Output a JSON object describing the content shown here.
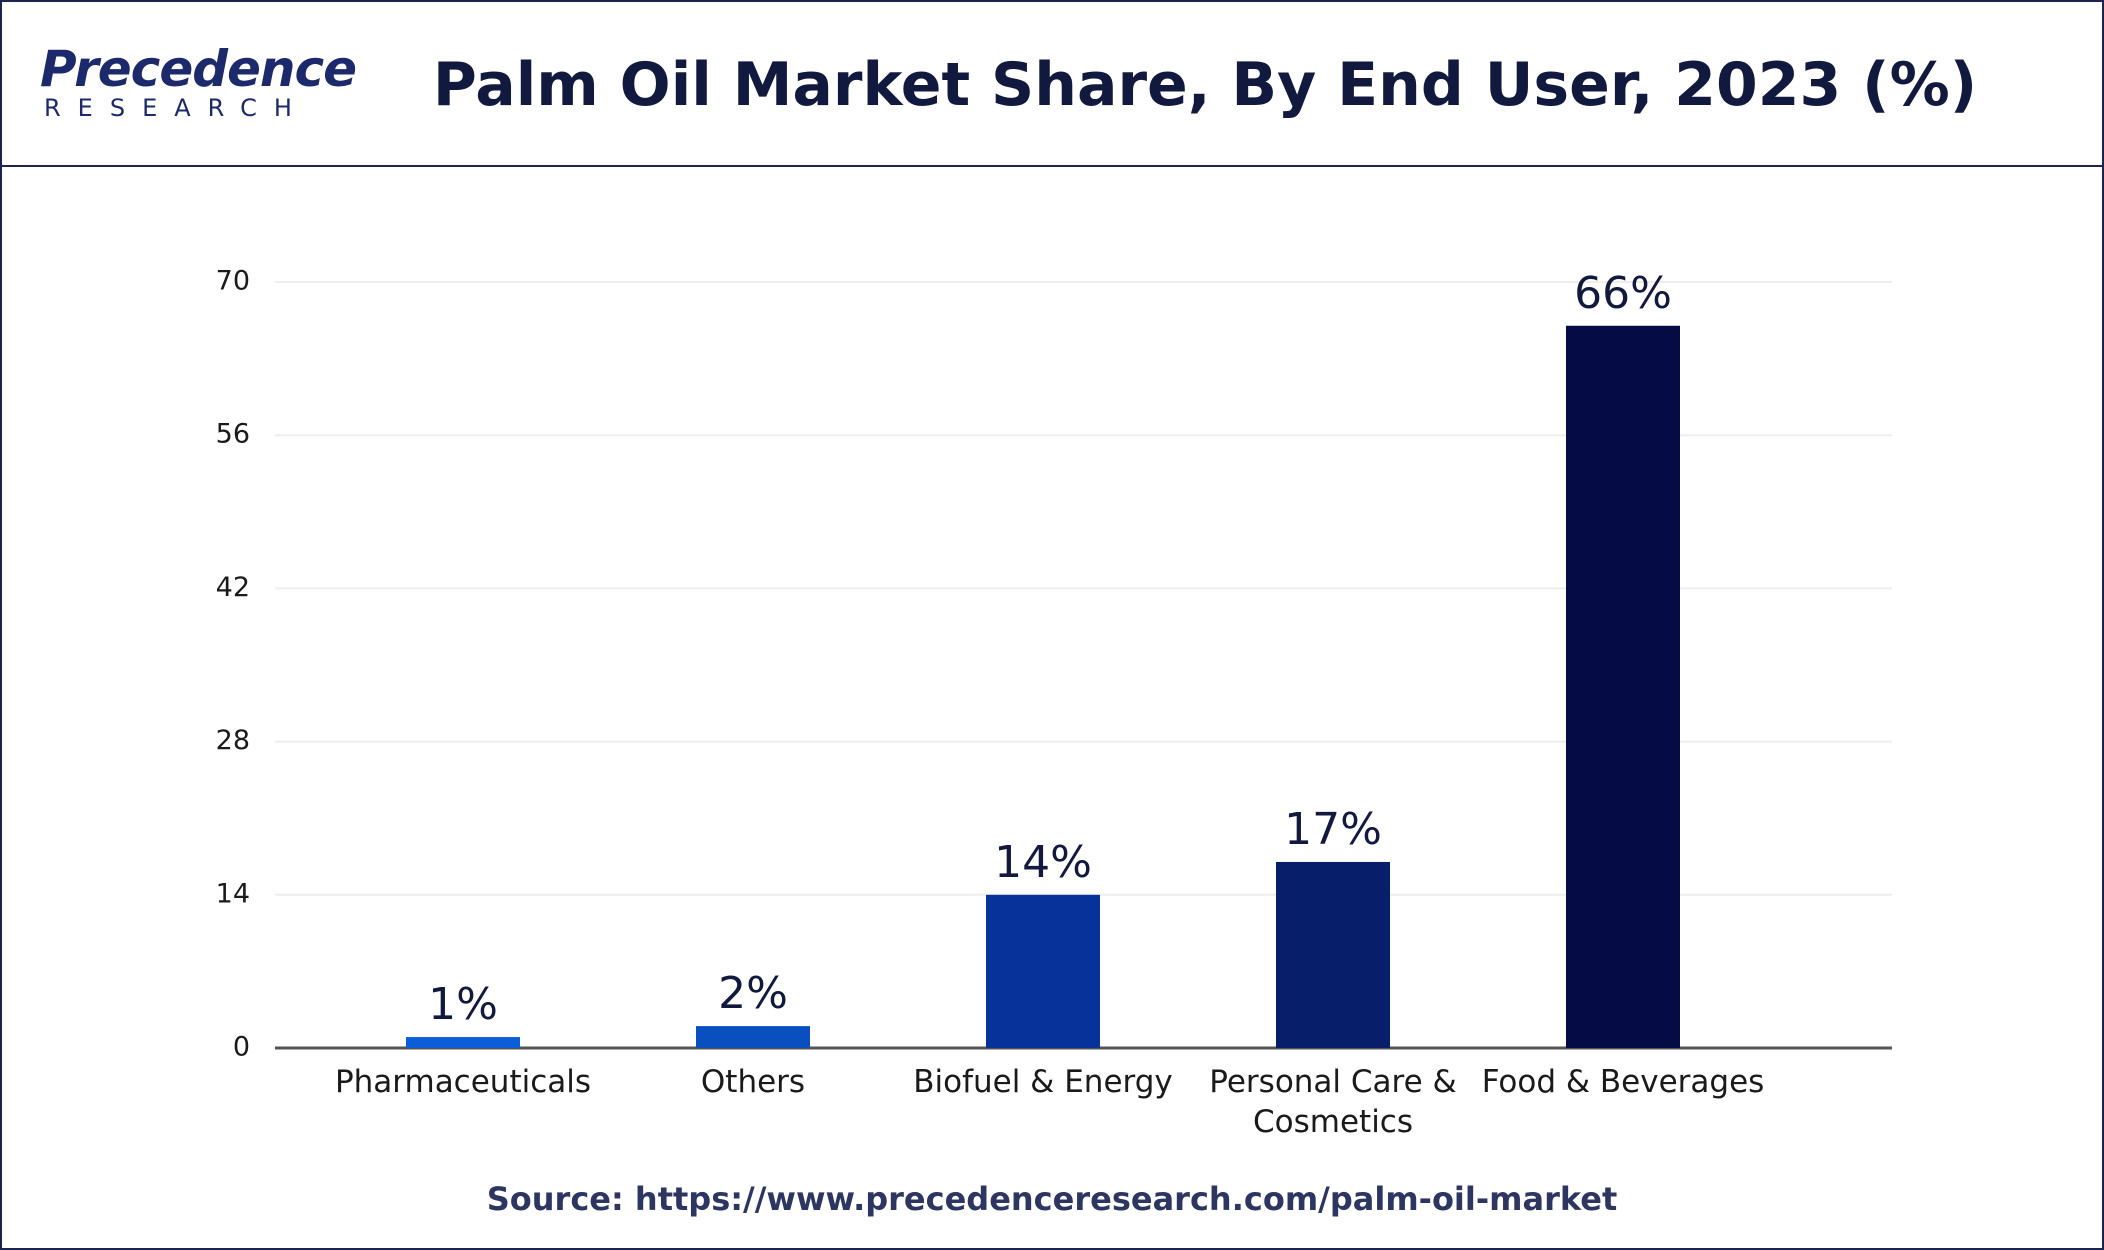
{
  "header": {
    "logo_name": "Precedence",
    "logo_sub": "RESEARCH"
  },
  "chart_data": {
    "type": "bar",
    "title": "Palm Oil Market Share, By End User, 2023 (%)",
    "categories": [
      "Pharmaceuticals",
      "Others",
      "Biofuel & Energy",
      "Personal Care & Cosmetics",
      "Food & Beverages"
    ],
    "values": [
      1,
      2,
      14,
      17,
      66
    ],
    "value_labels": [
      "1%",
      "2%",
      "14%",
      "17%",
      "66%"
    ],
    "colors": [
      "#0b5ed7",
      "#0a4fc0",
      "#06329a",
      "#071e6b",
      "#050c45"
    ],
    "ylim": [
      0,
      70
    ],
    "yticks": [
      0,
      14,
      28,
      42,
      56,
      70
    ],
    "grid": true,
    "source": "Source: https://www.precedenceresearch.com/palm-oil-market"
  }
}
